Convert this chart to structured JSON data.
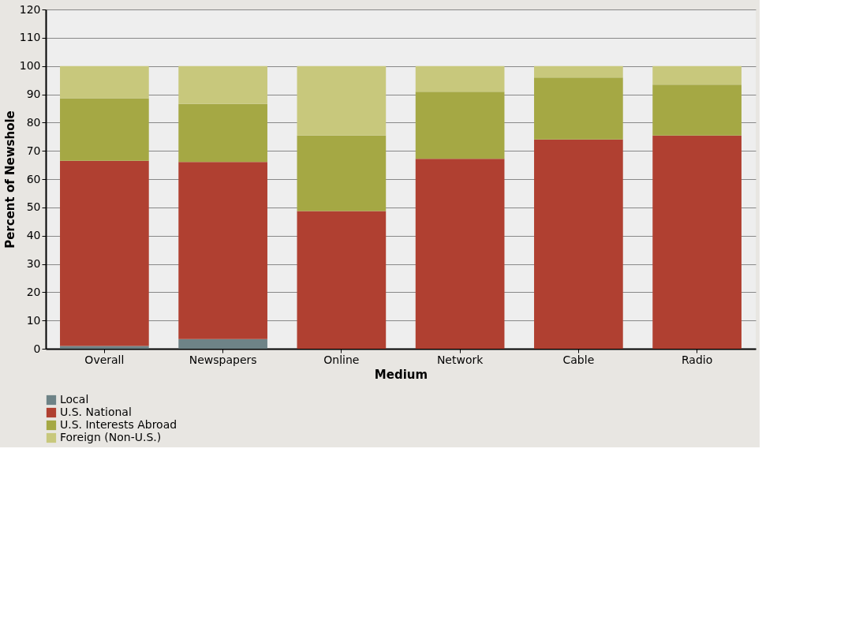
{
  "chart_data": {
    "type": "bar",
    "stacked": true,
    "xlabel": "Medium",
    "ylabel": "Percent of Newshole",
    "categories": [
      "Overall",
      "Newspapers",
      "Online",
      "Network",
      "Cable",
      "Radio"
    ],
    "series": [
      {
        "name": "Local",
        "color": "#6e8387",
        "values": [
          1.0,
          3.4,
          0,
          0,
          0,
          0
        ]
      },
      {
        "name": "U.S. National",
        "color": "#b04031",
        "values": [
          65.5,
          62.7,
          48.7,
          67.2,
          74.0,
          75.4
        ]
      },
      {
        "name": "U.S. Interests Abroad",
        "color": "#a5a844",
        "values": [
          22.1,
          20.5,
          26.7,
          23.7,
          21.9,
          18.0
        ]
      },
      {
        "name": "Foreign (Non-U.S.)",
        "color": "#c8c87c",
        "values": [
          11.4,
          13.4,
          24.6,
          9.1,
          4.1,
          6.6
        ]
      }
    ],
    "ylim": [
      0,
      120
    ],
    "yticks": [
      0,
      10,
      20,
      30,
      40,
      50,
      60,
      70,
      80,
      90,
      100,
      110,
      120
    ],
    "grid": "y",
    "legend": "bottom"
  }
}
